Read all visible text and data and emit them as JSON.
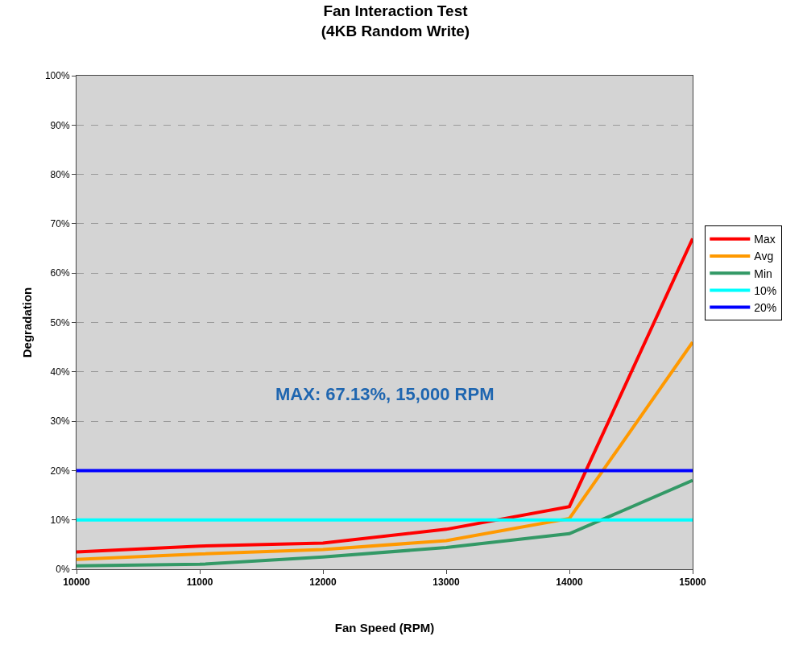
{
  "chart_data": {
    "type": "line",
    "title": "Fan Interaction Test\n(4KB Random Write)",
    "xlabel": "Fan Speed (RPM)",
    "ylabel": "Degradation",
    "x": [
      10000,
      11000,
      12000,
      13000,
      14000,
      15000
    ],
    "series": [
      {
        "name": "Max",
        "color": "#ff0000",
        "values": [
          3.5,
          4.7,
          5.3,
          8.1,
          12.7,
          67
        ]
      },
      {
        "name": "Avg",
        "color": "#ff9900",
        "values": [
          2.0,
          3.1,
          4.0,
          5.8,
          10.3,
          46
        ]
      },
      {
        "name": "Min",
        "color": "#339966",
        "values": [
          0.7,
          1.0,
          2.5,
          4.4,
          7.2,
          18
        ]
      },
      {
        "name": "10%",
        "color": "#00ffff",
        "values": [
          10,
          10,
          10,
          10,
          10,
          10
        ]
      },
      {
        "name": "20%",
        "color": "#0000ff",
        "values": [
          20,
          20,
          20,
          20,
          20,
          20
        ]
      }
    ],
    "annotations": [
      "MAX: 67.13%, 15,000 RPM"
    ],
    "xlim": [
      10000,
      15000
    ],
    "xticks": [
      10000,
      11000,
      12000,
      13000,
      14000,
      15000
    ],
    "ylim": [
      0,
      100
    ],
    "yticks": [
      {
        "value": 0,
        "label": "0%"
      },
      {
        "value": 10,
        "label": "10%"
      },
      {
        "value": 20,
        "label": "20%"
      },
      {
        "value": 30,
        "label": "30%"
      },
      {
        "value": 40,
        "label": "40%"
      },
      {
        "value": 50,
        "label": "50%"
      },
      {
        "value": 60,
        "label": "60%"
      },
      {
        "value": 70,
        "label": "70%"
      },
      {
        "value": 80,
        "label": "80%"
      },
      {
        "value": 90,
        "label": "90%"
      },
      {
        "value": 100,
        "label": "100%"
      }
    ],
    "grid": "y",
    "legend": "right",
    "marker": "none",
    "line_style": "solid"
  }
}
